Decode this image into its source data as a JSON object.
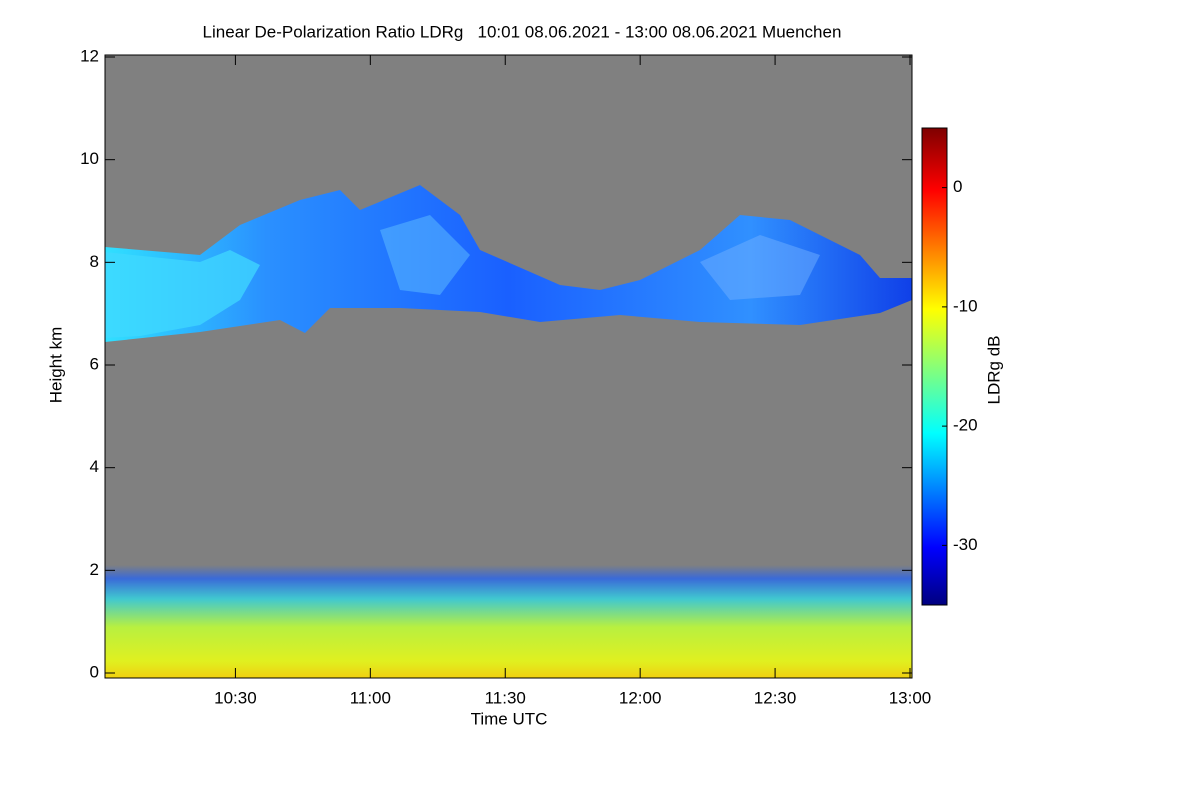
{
  "chart_data": {
    "type": "heatmap",
    "title": "Linear De-Polarization Ratio LDRg   10:01 08.06.2021 - 13:00 08.06.2021 Muenchen",
    "xlabel": "Time UTC",
    "ylabel": "Height km",
    "xlim": [
      10.0167,
      13.0
    ],
    "xticks": [
      {
        "value": 10.5,
        "label": "10:30"
      },
      {
        "value": 11.0,
        "label": "11:00"
      },
      {
        "value": 11.5,
        "label": "11:30"
      },
      {
        "value": 12.0,
        "label": "12:00"
      },
      {
        "value": 12.5,
        "label": "12:30"
      },
      {
        "value": 13.0,
        "label": "13:00"
      }
    ],
    "ylim": [
      0,
      12
    ],
    "yticks": [
      0,
      2,
      4,
      6,
      8,
      10,
      12
    ],
    "colorbar": {
      "label": "LDRg dB",
      "lim": [
        -35,
        5
      ],
      "ticks": [
        0,
        -10,
        -20,
        -30
      ]
    }
  }
}
